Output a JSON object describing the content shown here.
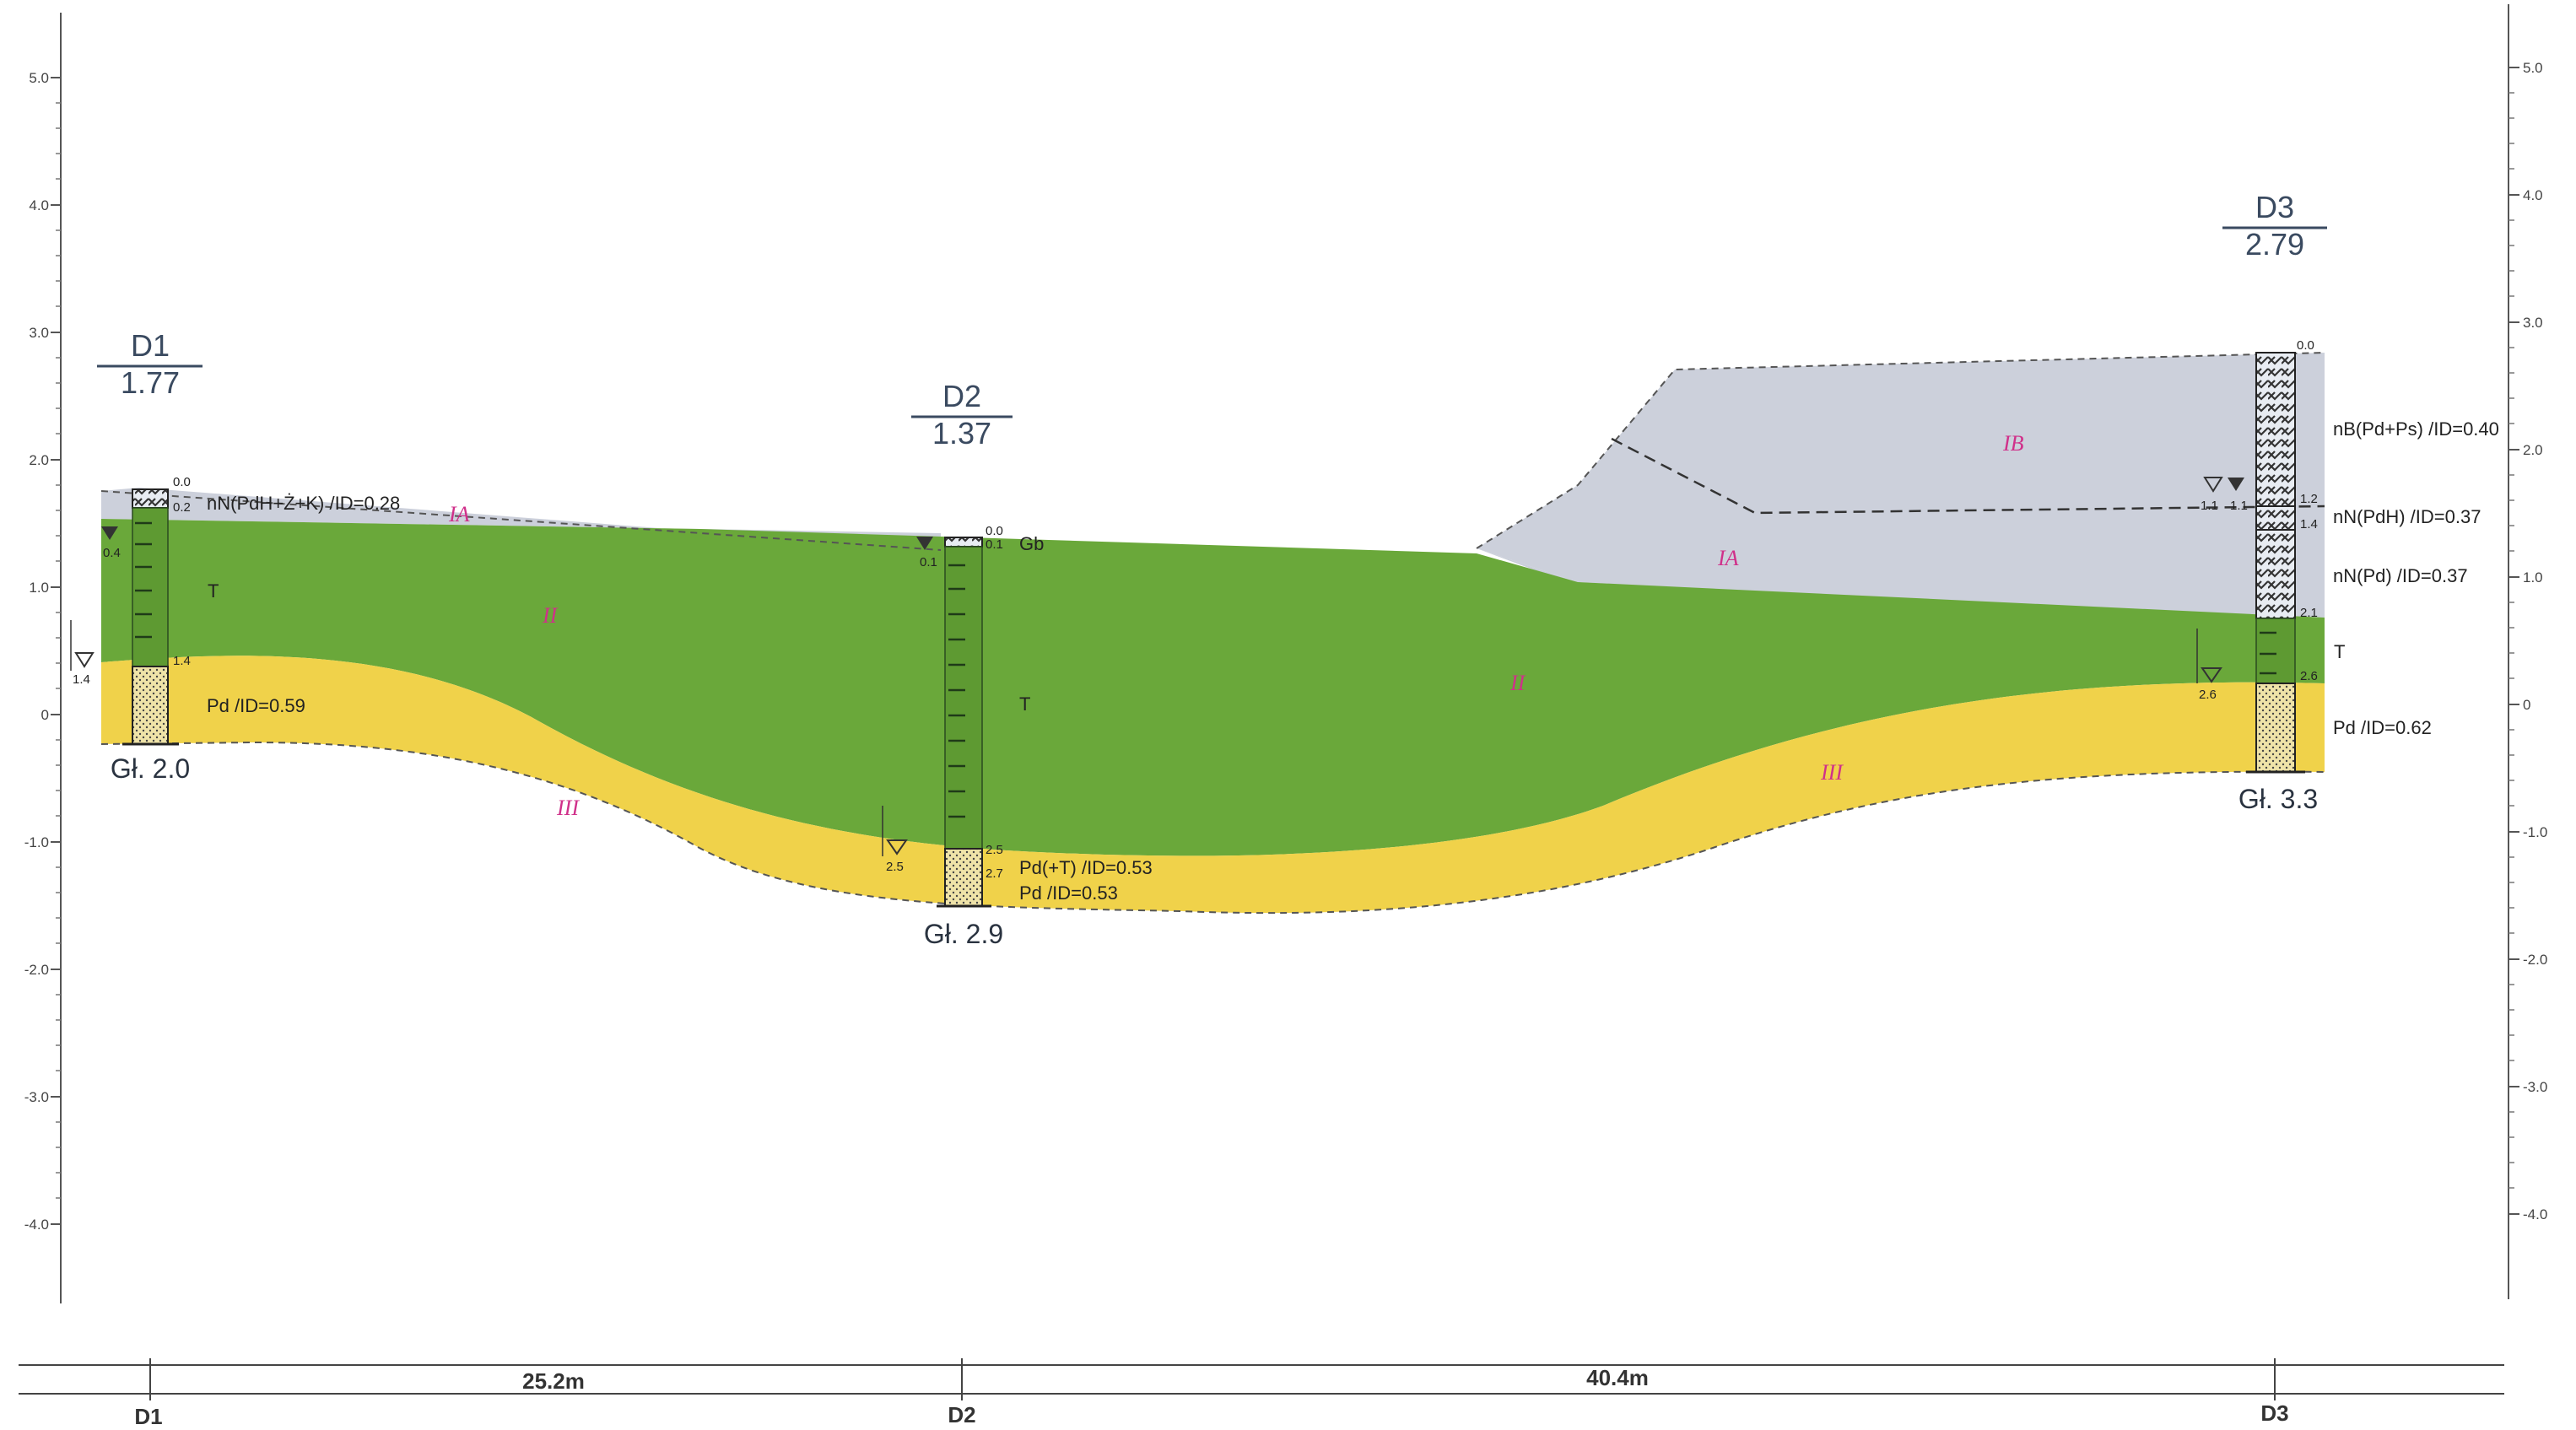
{
  "axis_left": {
    "ticks": [
      "5.0",
      "4.0",
      "3.0",
      "2.0",
      "1.0",
      "0",
      "-1.0",
      "-2.0",
      "-3.0",
      "-4.0"
    ]
  },
  "axis_right": {
    "ticks": [
      "5.0",
      "4.0",
      "3.0",
      "2.0",
      "1.0",
      "0",
      "-1.0",
      "-2.0",
      "-3.0",
      "-4.0"
    ]
  },
  "boreholes": [
    {
      "id": "D1",
      "elevation": "1.77",
      "depth": "Gł. 2.0",
      "marks": [
        "0.0",
        "0.2",
        "0.4",
        "1.4",
        "1.4"
      ]
    },
    {
      "id": "D2",
      "elevation": "1.37",
      "depth": "Gł. 2.9",
      "marks": [
        "0.0",
        "0.1",
        "0.1",
        "2.5",
        "2.5",
        "2.7"
      ]
    },
    {
      "id": "D3",
      "elevation": "2.79",
      "depth": "Gł. 3.3",
      "marks": [
        "0.0",
        "1.2",
        "1.4",
        "2.1",
        "2.6",
        "2.6",
        "1.1",
        "1.1"
      ]
    }
  ],
  "layer_labels": {
    "d1_fill": "nN(PdH+Ż+K) /ID=0.28",
    "d1_peat": "T",
    "d1_sand": "Pd /ID=0.59",
    "d2_top": "Gb",
    "d2_peat": "T",
    "d2_sand1": "Pd(+T) /ID=0.53",
    "d2_sand2": "Pd /ID=0.53",
    "d3_fill1": "nB(Pd+Ps) /ID=0.40",
    "d3_fill2": "nN(PdH) /ID=0.37",
    "d3_fill3": "nN(Pd) /ID=0.37",
    "d3_peat": "T",
    "d3_sand": "Pd /ID=0.62"
  },
  "zones": [
    "IA",
    "II",
    "III",
    "IA",
    "IB",
    "II",
    "III"
  ],
  "distances": [
    "25.2m",
    "40.4m"
  ],
  "bottom_labels": [
    "D1",
    "D2",
    "D3"
  ],
  "colors": {
    "fill_layer": "#c9ced9",
    "peat_layer": "#6aa83a",
    "sand_layer": "#f0d24a",
    "roman": "#d0308a"
  }
}
